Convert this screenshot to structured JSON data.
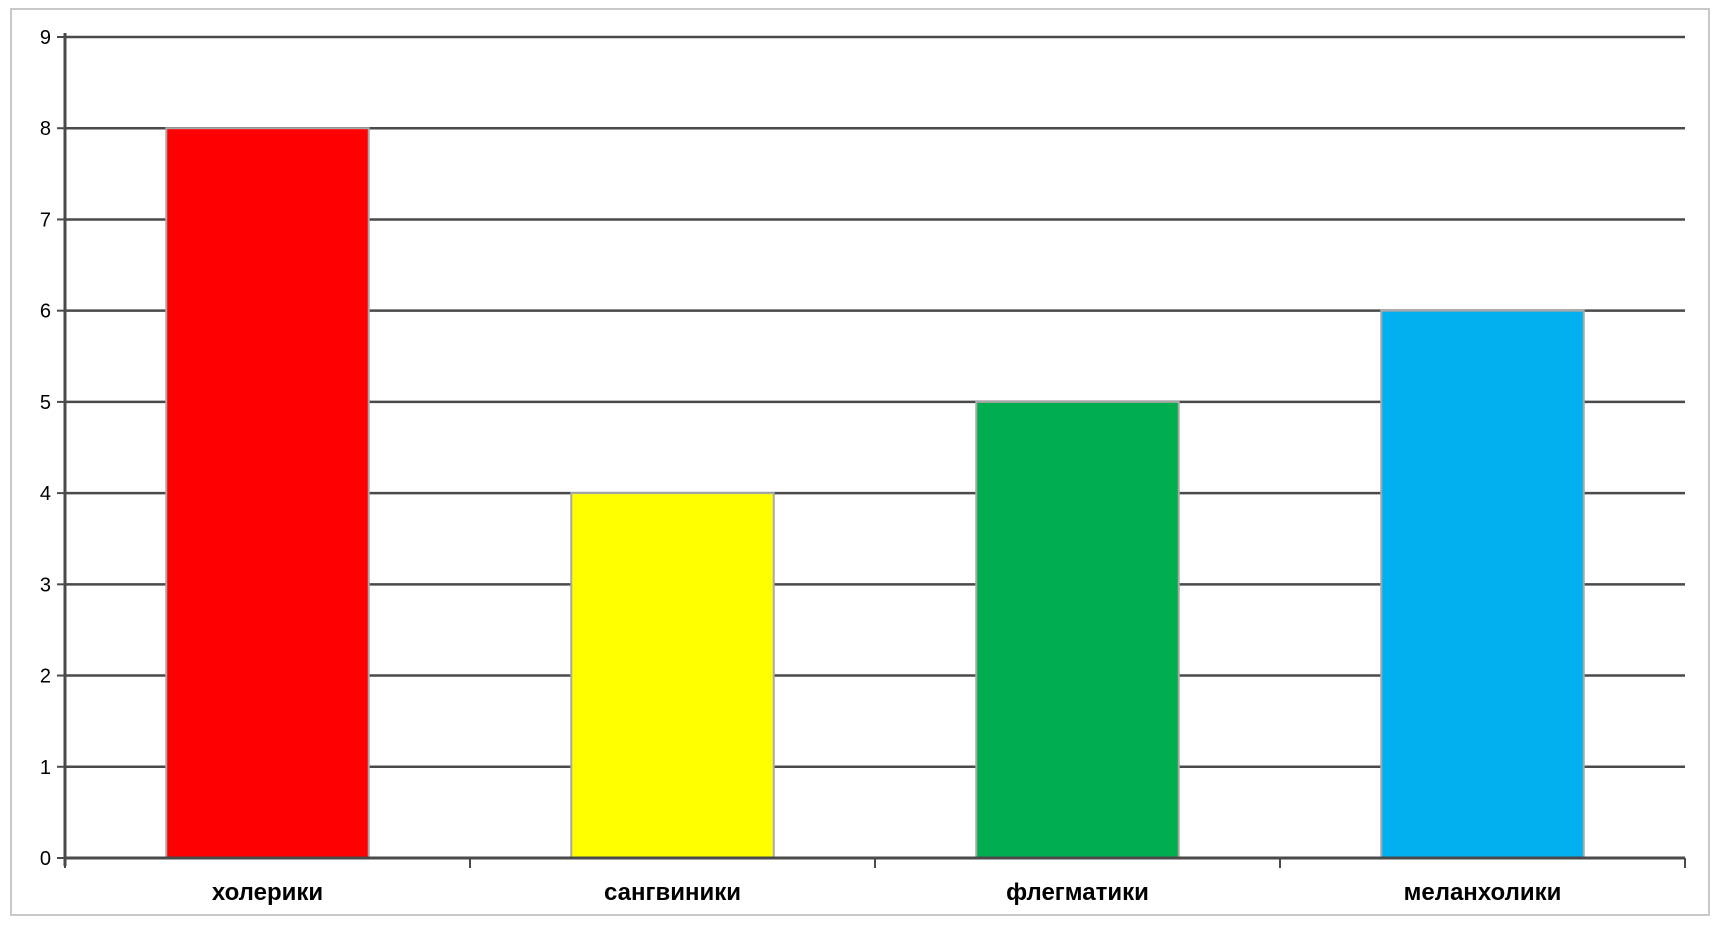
{
  "chart_data": {
    "type": "bar",
    "categories": [
      "холерики",
      "сангвиники",
      "флегматики",
      "меланхолики"
    ],
    "values": [
      8,
      4,
      5,
      6
    ],
    "colors": [
      "#ff0000",
      "#ffff00",
      "#00ad4f",
      "#00b0ef"
    ],
    "ylim": [
      0,
      9
    ],
    "yticks": [
      "0",
      "1",
      "2",
      "3",
      "4",
      "5",
      "6",
      "7",
      "8",
      "9"
    ],
    "grid": true,
    "legend": "none",
    "title": "",
    "xlabel": "",
    "ylabel": ""
  }
}
